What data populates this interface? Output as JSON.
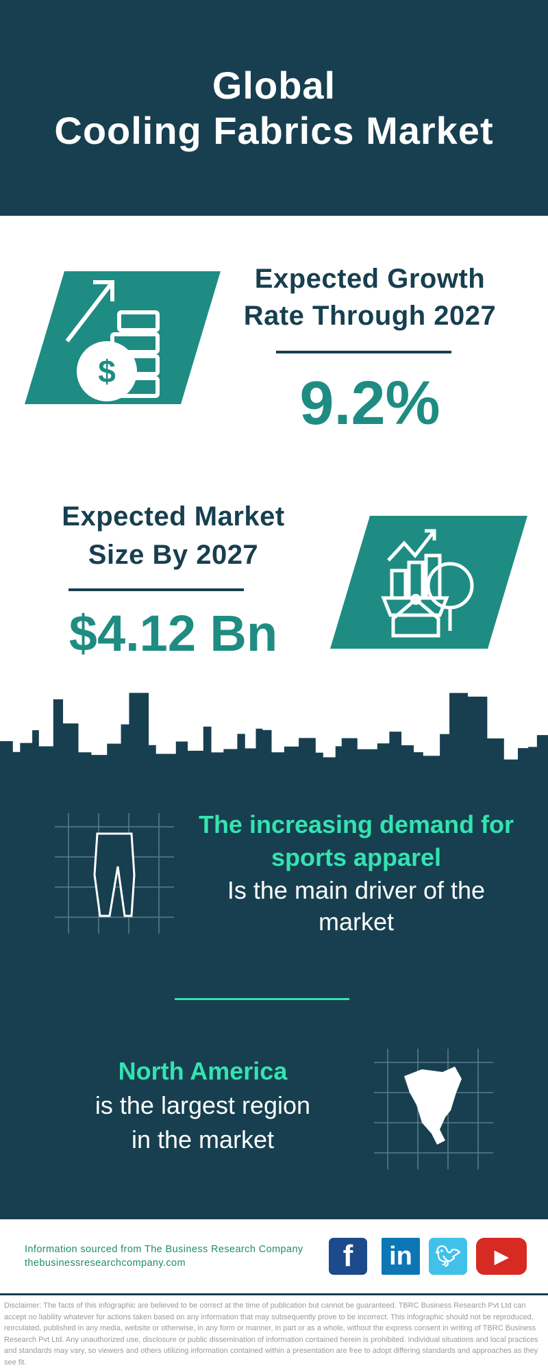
{
  "header": {
    "title_line1": "Global",
    "title_line2": "Cooling Fabrics Market"
  },
  "growth": {
    "label_line1": "Expected Growth",
    "label_line2": "Rate Through 2027",
    "value": "9.2%",
    "icon": "money-growth-icon"
  },
  "market_size": {
    "label_line1": "Expected Market",
    "label_line2": "Size By 2027",
    "value": "$4.12 Bn",
    "icon": "market-analysis-icon"
  },
  "driver": {
    "highlight_line1": "The increasing demand for",
    "highlight_line2": "sports apparel",
    "text_line1": "Is the main driver of the",
    "text_line2": "market",
    "icon": "sports-leggings-icon"
  },
  "region": {
    "highlight": "North America",
    "text_line1": "is the largest region",
    "text_line2": "in the market",
    "icon": "north-america-map-icon"
  },
  "footer": {
    "source": "Information sourced from The Business Research Company",
    "website": "thebusinessresearchcompany.com",
    "social": [
      "facebook",
      "linkedin",
      "twitter",
      "youtube"
    ]
  },
  "disclaimer": "Disclaimer: The facts of this infographic are believed to be correct at the time of publication but cannot be guaranteed. TBRC Business Research Pvt Ltd can accept no liability whatever for actions taken based on any information that may subsequently prove to be incorrect. This infographic should not be reproduced, reirculated, published in any media, website or otherwise, in any form or manner, in part or as a whole, without the express consent in writing of TBRC Business Research Pvt Ltd. Any unauthorized use, disclosure or public dissemination of information contained herein is prohibited. Individual situations and local practices and standards may vary, so viewers and others utilizing information contained within a presentation are free to adopt differing standards and approaches as they see fit.",
  "colors": {
    "dark": "#173f4f",
    "teal": "#1e8c82",
    "accent_green": "#34e3b0"
  }
}
